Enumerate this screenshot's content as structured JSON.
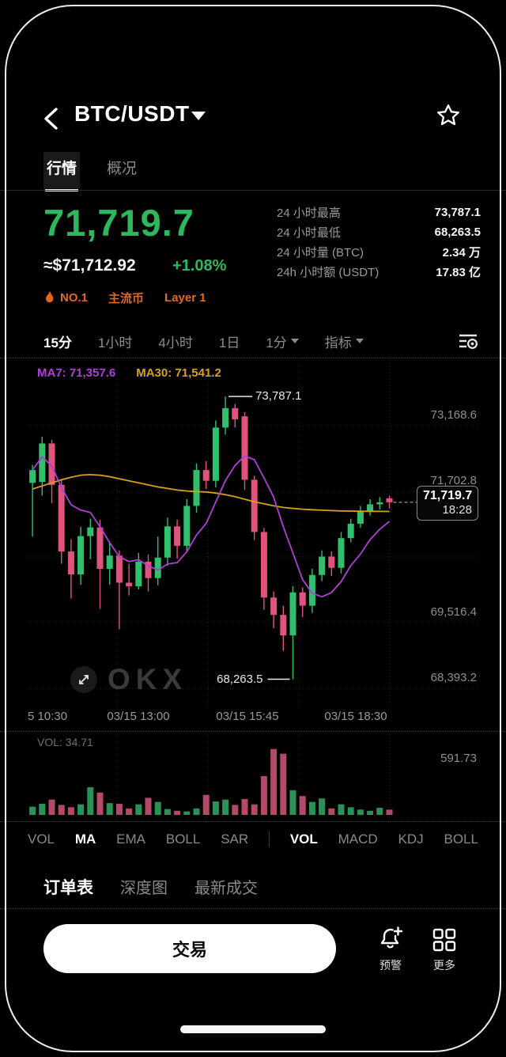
{
  "header": {
    "title": "BTC/USDT"
  },
  "main_tabs": [
    {
      "label": "行情",
      "active": true
    },
    {
      "label": "概况",
      "active": false
    }
  ],
  "price": {
    "last": "71,719.7",
    "fiat": "≈$71,712.92",
    "change": "+1.08%"
  },
  "stats": [
    {
      "label": "24 小时最高",
      "value": "73,787.1"
    },
    {
      "label": "24 小时最低",
      "value": "68,263.5"
    },
    {
      "label": "24 小时量 (BTC)",
      "value": "2.34 万"
    },
    {
      "label": "24h 小时额 (USDT)",
      "value": "17.83 亿"
    }
  ],
  "badges": {
    "rank": "NO.1",
    "tags": [
      "主流币",
      "Layer 1"
    ]
  },
  "timeframes": [
    {
      "label": "15分",
      "active": true,
      "caret": false
    },
    {
      "label": "1小时",
      "active": false,
      "caret": false
    },
    {
      "label": "4小时",
      "active": false,
      "caret": false
    },
    {
      "label": "1日",
      "active": false,
      "caret": false
    },
    {
      "label": "1分",
      "active": false,
      "caret": true
    },
    {
      "label": "指标",
      "active": false,
      "caret": true
    }
  ],
  "chart_data": {
    "type": "candlestick+volume",
    "ma7_label": "MA7: 71,357.6",
    "ma30_label": "MA30: 71,541.2",
    "high_annotation": "73,787.1",
    "low_annotation": "68,263.5",
    "price_tag": {
      "price": "71,719.7",
      "time": "18:28"
    },
    "y_axis_labels": [
      "73,168.6",
      "71,702.8",
      "69,516.4",
      "68,393.2"
    ],
    "x_axis_labels": [
      "5 10:30",
      "03/15 13:00",
      "03/15 15:45",
      "03/15 18:30"
    ],
    "price_range": [
      67700,
      74500
    ],
    "vol_label": "VOL: 34.71",
    "vol_axis_max_label": "591.73",
    "vol_axis_max": 591.73,
    "colors": {
      "up": "#2fbf6d",
      "down": "#e0547c",
      "vol_up": "#2a9157",
      "vol_down": "#b24a68",
      "ma7": "#b03fd6",
      "ma30": "#d6a21e"
    },
    "candles": [
      [
        72100,
        72450,
        71050,
        72350
      ],
      [
        72120,
        73000,
        71850,
        72870
      ],
      [
        72870,
        72940,
        71700,
        72060
      ],
      [
        72060,
        72160,
        70520,
        70760
      ],
      [
        70760,
        71000,
        69840,
        70310
      ],
      [
        70310,
        71240,
        70110,
        71060
      ],
      [
        71060,
        71400,
        70610,
        71230
      ],
      [
        71230,
        71380,
        69640,
        70420
      ],
      [
        70420,
        70920,
        70110,
        70680
      ],
      [
        70680,
        70780,
        69240,
        70150
      ],
      [
        70150,
        70520,
        69900,
        70080
      ],
      [
        70080,
        70730,
        70020,
        70560
      ],
      [
        70560,
        70700,
        69980,
        70240
      ],
      [
        70240,
        71050,
        70100,
        70640
      ],
      [
        70640,
        71420,
        70480,
        71250
      ],
      [
        71250,
        71380,
        70620,
        70870
      ],
      [
        70870,
        71780,
        70760,
        71650
      ],
      [
        71650,
        72480,
        71520,
        72350
      ],
      [
        72350,
        72520,
        71980,
        72140
      ],
      [
        72140,
        73320,
        72010,
        73180
      ],
      [
        73180,
        73787.1,
        73040,
        73560
      ],
      [
        73560,
        73640,
        73180,
        73340
      ],
      [
        73400,
        73480,
        71960,
        72160
      ],
      [
        72160,
        72240,
        70980,
        71140
      ],
      [
        71140,
        71220,
        69620,
        69860
      ],
      [
        69860,
        69980,
        69260,
        69520
      ],
      [
        69520,
        69700,
        68820,
        69120
      ],
      [
        69120,
        70080,
        68263.5,
        69960
      ],
      [
        69960,
        70060,
        69480,
        69700
      ],
      [
        69700,
        70420,
        69560,
        70300
      ],
      [
        70300,
        70780,
        70180,
        70660
      ],
      [
        70660,
        70760,
        70280,
        70440
      ],
      [
        70440,
        71140,
        70330,
        71020
      ],
      [
        71020,
        71400,
        70940,
        71300
      ],
      [
        71300,
        71650,
        71220,
        71540
      ],
      [
        71540,
        71780,
        71460,
        71680
      ],
      [
        71680,
        71820,
        71580,
        71720
      ],
      [
        71800,
        71850,
        71600,
        71719.7
      ]
    ],
    "volumes": [
      70,
      95,
      130,
      85,
      65,
      90,
      235,
      190,
      100,
      95,
      55,
      90,
      145,
      110,
      50,
      35,
      30,
      55,
      170,
      115,
      130,
      85,
      135,
      90,
      330,
      560,
      520,
      210,
      160,
      110,
      140,
      55,
      90,
      65,
      45,
      35,
      60,
      45
    ],
    "ma30": [
      71980,
      72040,
      72100,
      72160,
      72210,
      72250,
      72260,
      72250,
      72220,
      72180,
      72140,
      72100,
      72060,
      72020,
      71990,
      71960,
      71940,
      71930,
      71920,
      71900,
      71870,
      71830,
      71780,
      71730,
      71690,
      71650,
      71620,
      71600,
      71585,
      71575,
      71565,
      71558,
      71552,
      71548,
      71545,
      71543,
      71542,
      71541
    ]
  },
  "indicators": {
    "main": [
      "VOL",
      "MA",
      "EMA",
      "BOLL",
      "SAR"
    ],
    "main_active": "MA",
    "sub": [
      "VOL",
      "MACD",
      "KDJ",
      "BOLL"
    ],
    "sub_active": "VOL"
  },
  "order_tabs": [
    {
      "label": "订单表",
      "active": true
    },
    {
      "label": "深度图",
      "active": false
    },
    {
      "label": "最新成交",
      "active": false
    }
  ],
  "bottom_bar": {
    "trade_button": "交易",
    "alert_label": "预警",
    "more_label": "更多"
  },
  "watermark": "OKX"
}
